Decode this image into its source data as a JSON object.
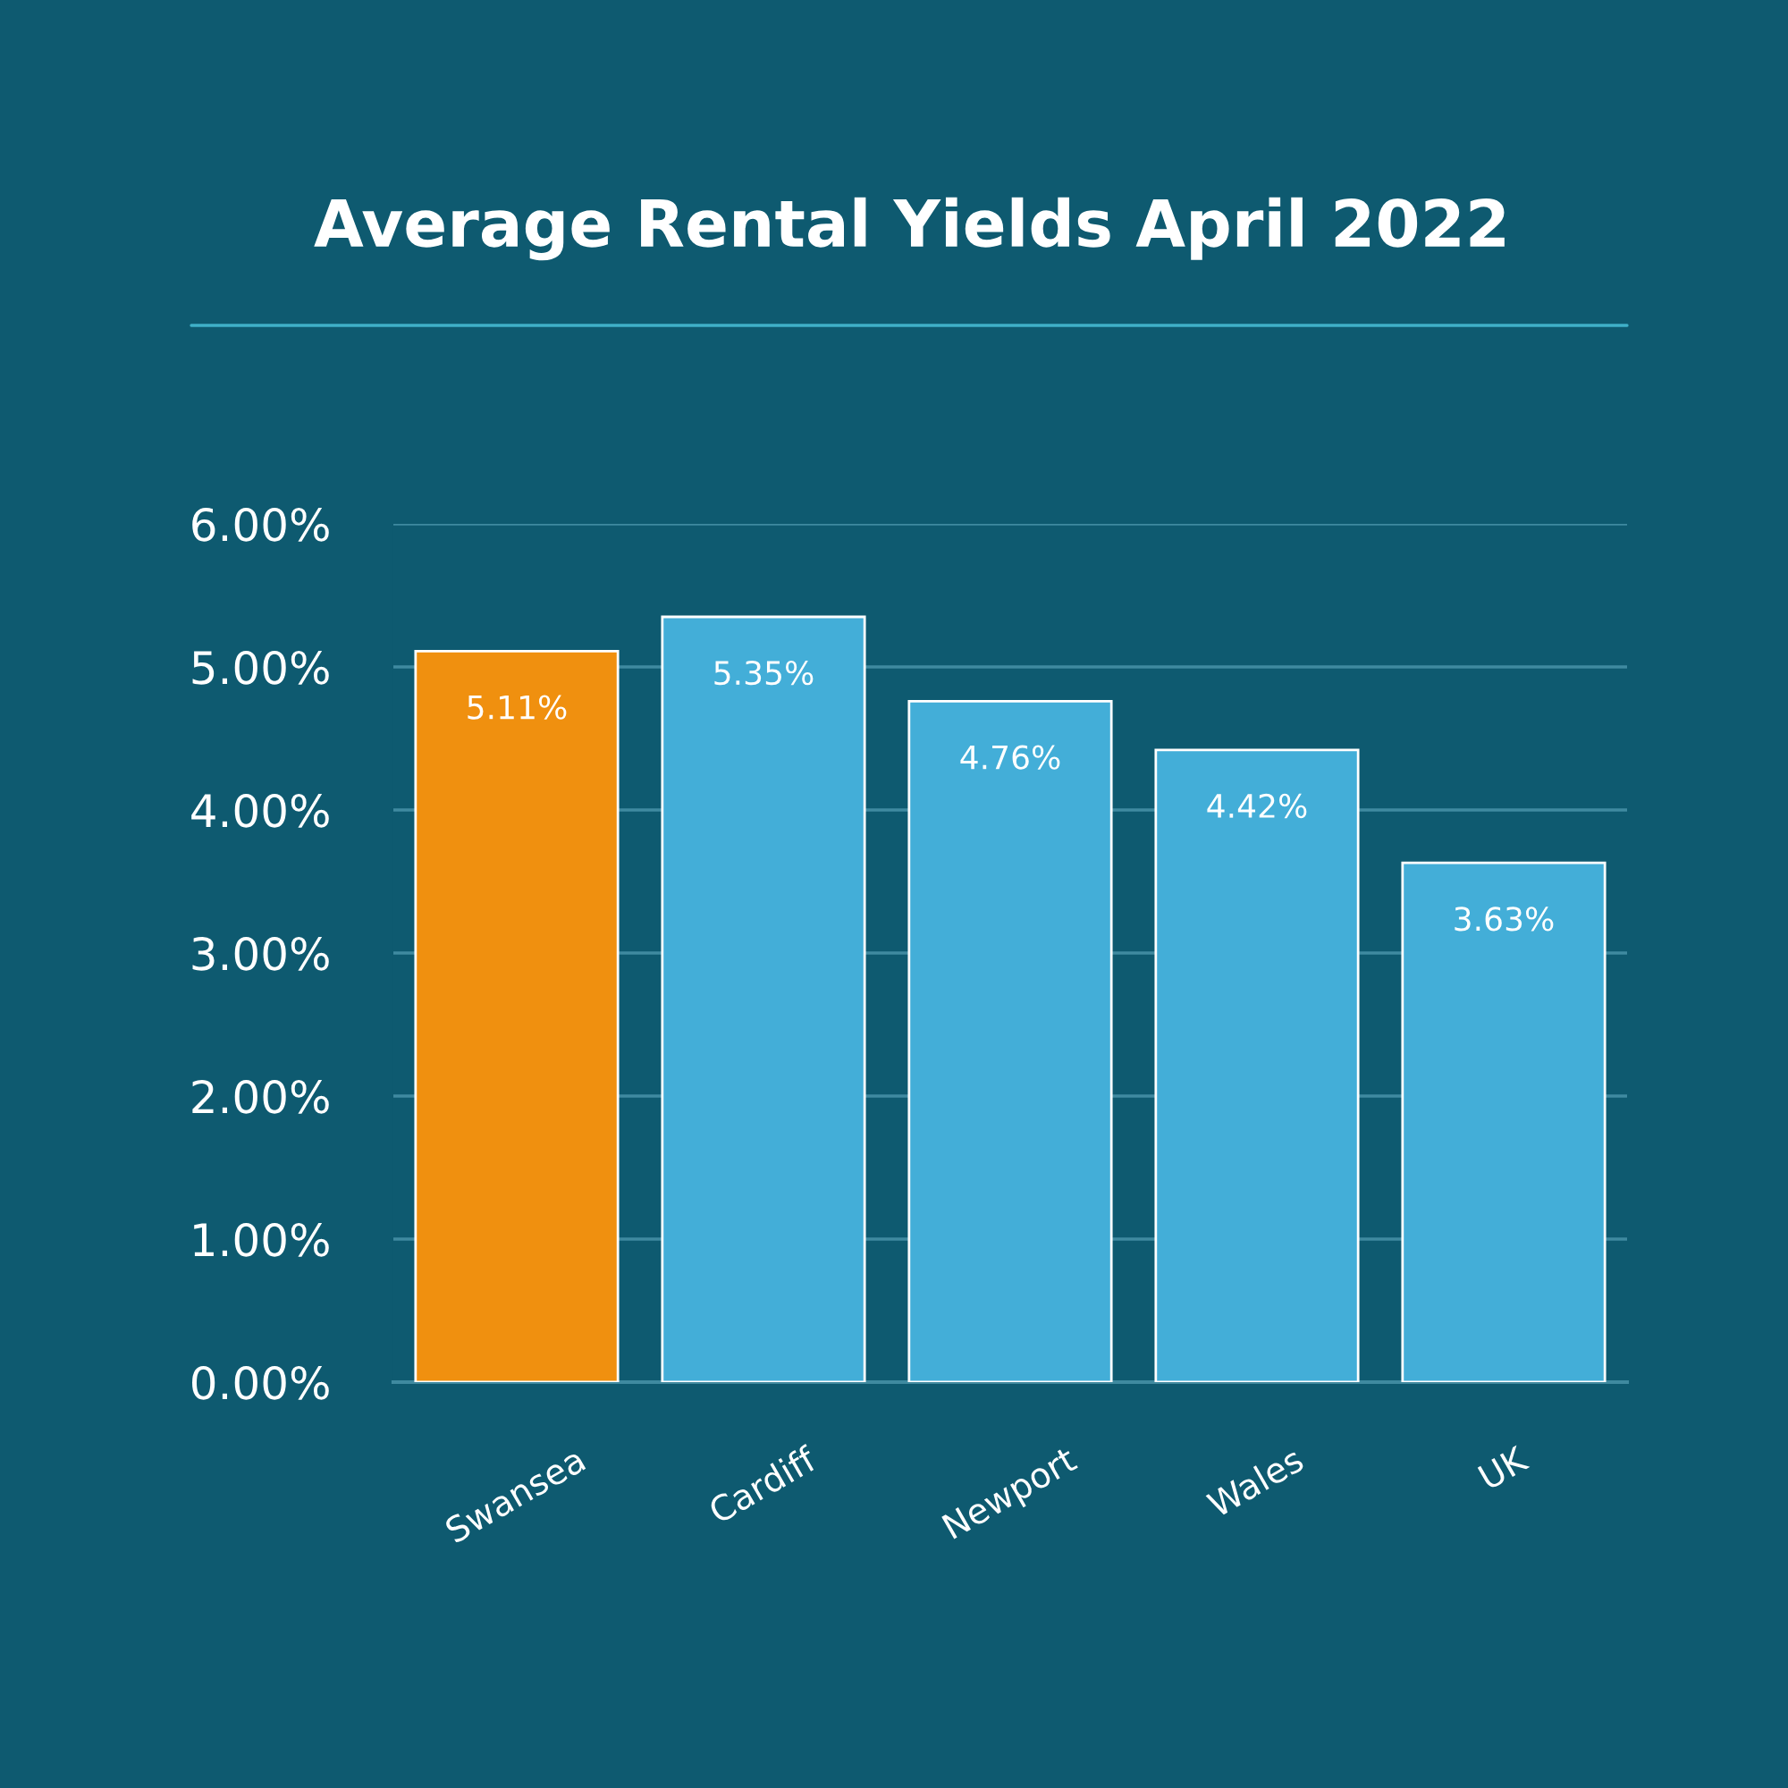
{
  "chart_data": {
    "type": "bar",
    "title": "Average Rental Yields April 2022",
    "categories": [
      "Swansea",
      "Cardiff",
      "Newport",
      "Wales",
      "UK"
    ],
    "values": [
      5.11,
      5.35,
      4.76,
      4.42,
      3.63
    ],
    "colors": [
      "#f0900f",
      "#43aed8",
      "#43aed8",
      "#43aed8",
      "#43aed8"
    ],
    "value_labels": [
      "5.11%",
      "5.35%",
      "4.76%",
      "4.42%",
      "3.63%"
    ],
    "ylim": [
      0,
      6
    ],
    "yticks": [
      {
        "value": 0,
        "label": "0.00%"
      },
      {
        "value": 1,
        "label": "1.00%"
      },
      {
        "value": 2,
        "label": "2.00%"
      },
      {
        "value": 3,
        "label": "3.00%"
      },
      {
        "value": 4,
        "label": "4.00%"
      },
      {
        "value": 5,
        "label": "5.00%"
      },
      {
        "value": 6,
        "label": "6.00%"
      }
    ],
    "grid": "y"
  }
}
